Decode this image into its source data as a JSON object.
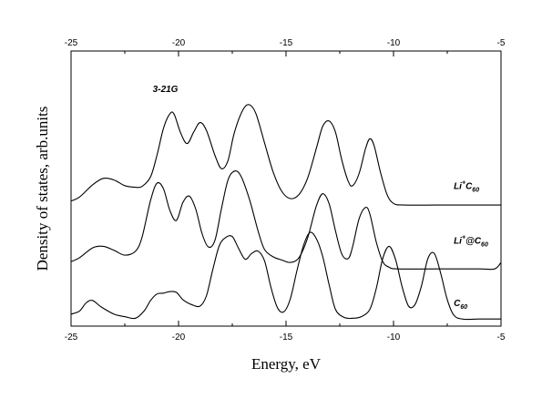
{
  "chart_data": {
    "type": "line",
    "title": "",
    "xlabel": "Energy, eV",
    "ylabel": "Density of states, arb.units",
    "xlim": [
      -25,
      -5
    ],
    "xticks": [
      -25,
      -20,
      -15,
      -10,
      -5
    ],
    "xtick_labels": [
      "-25",
      "-20",
      "-15",
      "-10",
      "-5"
    ],
    "top_axis_ticks": true,
    "ylim": [
      0,
      3.2
    ],
    "yticks_visible": false,
    "grid": false,
    "legend": "none",
    "annotations": [
      {
        "text": "3-21G",
        "x": -21.2,
        "y": 2.83
      },
      {
        "text": "Li",
        "sup": "+",
        "sub": "60",
        "base": "C",
        "x": -7.2,
        "y": 1.63
      },
      {
        "text": "Li",
        "sup": "+",
        "mid": "@C",
        "sub": "60",
        "x": -7.2,
        "y": 0.95
      },
      {
        "text": "C",
        "sub": "60",
        "x": -7.2,
        "y": 0.18
      }
    ],
    "series": [
      {
        "label_ref": "Li+C60",
        "x": [
          -25.0,
          -24.6,
          -24.0,
          -23.5,
          -23.0,
          -22.5,
          -22.0,
          -21.7,
          -21.3,
          -21.0,
          -20.7,
          -20.4,
          -20.2,
          -19.9,
          -19.6,
          -19.3,
          -19.0,
          -18.7,
          -18.3,
          -18.0,
          -17.7,
          -17.4,
          -17.0,
          -16.7,
          -16.4,
          -16.0,
          -15.6,
          -15.2,
          -14.8,
          -14.4,
          -14.0,
          -13.6,
          -13.3,
          -13.0,
          -12.7,
          -12.4,
          -12.1,
          -11.9,
          -11.6,
          -11.3,
          -11.1,
          -10.9,
          -10.6,
          -10.3,
          -10.0,
          -9.5,
          -8.0,
          -6.5,
          -5.0
        ],
        "values": [
          1.48,
          1.53,
          1.68,
          1.76,
          1.74,
          1.67,
          1.65,
          1.66,
          1.78,
          2.05,
          2.38,
          2.56,
          2.55,
          2.32,
          2.19,
          2.33,
          2.45,
          2.35,
          2.04,
          1.88,
          1.98,
          2.33,
          2.61,
          2.67,
          2.56,
          2.2,
          1.84,
          1.6,
          1.51,
          1.56,
          1.76,
          2.12,
          2.4,
          2.47,
          2.33,
          1.98,
          1.72,
          1.67,
          1.82,
          2.13,
          2.25,
          2.16,
          1.83,
          1.56,
          1.45,
          1.43,
          1.43,
          1.43,
          1.43
        ]
      },
      {
        "label_ref": "Li+@C60",
        "x": [
          -25.0,
          -24.6,
          -24.0,
          -23.5,
          -23.0,
          -22.5,
          -22.0,
          -21.7,
          -21.3,
          -21.0,
          -20.7,
          -20.4,
          -20.1,
          -19.8,
          -19.5,
          -19.2,
          -18.9,
          -18.6,
          -18.3,
          -18.0,
          -17.7,
          -17.4,
          -17.1,
          -16.7,
          -16.3,
          -16.0,
          -15.6,
          -15.2,
          -14.8,
          -14.4,
          -14.0,
          -13.6,
          -13.3,
          -13.0,
          -12.7,
          -12.4,
          -12.1,
          -11.9,
          -11.6,
          -11.3,
          -11.1,
          -10.8,
          -10.5,
          -10.2,
          -9.8,
          -8.0,
          -6.0,
          -5.3,
          -5.0
        ],
        "values": [
          0.73,
          0.78,
          0.9,
          0.92,
          0.87,
          0.81,
          0.86,
          1.03,
          1.49,
          1.7,
          1.63,
          1.36,
          1.24,
          1.46,
          1.54,
          1.38,
          1.07,
          0.91,
          1.0,
          1.39,
          1.74,
          1.85,
          1.79,
          1.5,
          1.11,
          0.88,
          0.79,
          0.75,
          0.72,
          0.78,
          1.02,
          1.41,
          1.57,
          1.45,
          1.11,
          0.82,
          0.77,
          0.92,
          1.26,
          1.4,
          1.32,
          0.97,
          0.73,
          0.66,
          0.64,
          0.64,
          0.64,
          0.64,
          0.72
        ]
      },
      {
        "label_ref": "C60",
        "x": [
          -25.0,
          -24.6,
          -24.3,
          -24.0,
          -23.6,
          -23.0,
          -22.5,
          -22.0,
          -21.6,
          -21.3,
          -21.0,
          -20.7,
          -20.4,
          -20.1,
          -19.8,
          -19.4,
          -19.0,
          -18.7,
          -18.4,
          -18.1,
          -17.8,
          -17.5,
          -17.2,
          -16.9,
          -16.6,
          -16.3,
          -16.0,
          -15.7,
          -15.4,
          -15.1,
          -14.8,
          -14.5,
          -14.2,
          -13.9,
          -13.6,
          -13.3,
          -13.0,
          -12.7,
          -12.3,
          -11.9,
          -11.5,
          -11.1,
          -10.8,
          -10.5,
          -10.2,
          -9.9,
          -9.6,
          -9.3,
          -9.0,
          -8.7,
          -8.4,
          -8.1,
          -7.8,
          -7.5,
          -7.2,
          -6.8,
          -6.0,
          -5.0
        ],
        "values": [
          0.08,
          0.12,
          0.22,
          0.25,
          0.17,
          0.08,
          0.05,
          0.03,
          0.12,
          0.25,
          0.33,
          0.34,
          0.36,
          0.35,
          0.26,
          0.2,
          0.18,
          0.31,
          0.64,
          0.93,
          1.03,
          1.04,
          0.89,
          0.76,
          0.83,
          0.86,
          0.74,
          0.41,
          0.16,
          0.11,
          0.27,
          0.61,
          0.92,
          1.09,
          1.02,
          0.8,
          0.45,
          0.14,
          0.04,
          0.03,
          0.05,
          0.14,
          0.4,
          0.77,
          0.92,
          0.75,
          0.42,
          0.18,
          0.2,
          0.43,
          0.77,
          0.83,
          0.58,
          0.26,
          0.07,
          0.02,
          0.02,
          0.02
        ]
      }
    ]
  }
}
